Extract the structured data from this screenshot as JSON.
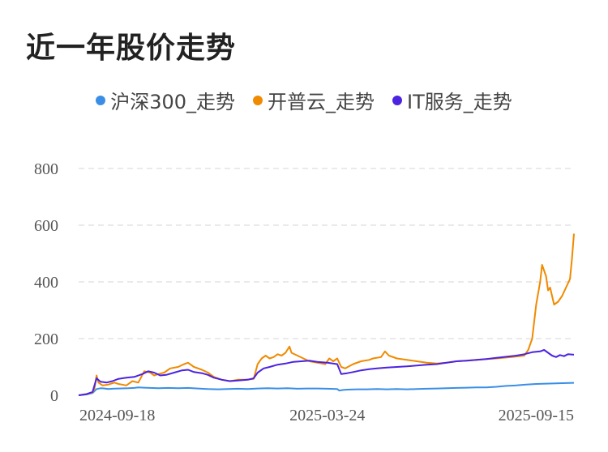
{
  "header": {
    "title": "近一年股价走势"
  },
  "legend": [
    {
      "label": "沪深300_走势",
      "color": "#3a8ee6"
    },
    {
      "label": "开普云_走势",
      "color": "#f08a00"
    },
    {
      "label": "IT服务_走势",
      "color": "#4b23e0"
    }
  ],
  "chart_data": {
    "type": "line",
    "title": "近一年股价走势",
    "xlabel": "",
    "ylabel": "",
    "ylim": [
      0,
      800
    ],
    "yticks": [
      0,
      200,
      400,
      600,
      800
    ],
    "xticks": [
      "2024-09-18",
      "2025-03-24",
      "2025-09-15"
    ],
    "grid": "horizontal-dashed",
    "legend_position": "top",
    "x_count": 250,
    "series": [
      {
        "name": "沪深300_走势",
        "color": "#3a8ee6",
        "points": [
          [
            0,
            0
          ],
          [
            4,
            3
          ],
          [
            7,
            8
          ],
          [
            9,
            22
          ],
          [
            11,
            25
          ],
          [
            13,
            24
          ],
          [
            15,
            22
          ],
          [
            17,
            23
          ],
          [
            20,
            24
          ],
          [
            25,
            25
          ],
          [
            28,
            26
          ],
          [
            30,
            28
          ],
          [
            33,
            27
          ],
          [
            36,
            26
          ],
          [
            40,
            25
          ],
          [
            45,
            26
          ],
          [
            50,
            25
          ],
          [
            55,
            26
          ],
          [
            60,
            24
          ],
          [
            65,
            22
          ],
          [
            70,
            21
          ],
          [
            75,
            22
          ],
          [
            80,
            23
          ],
          [
            85,
            22
          ],
          [
            90,
            24
          ],
          [
            95,
            25
          ],
          [
            100,
            24
          ],
          [
            105,
            25
          ],
          [
            110,
            23
          ],
          [
            115,
            24
          ],
          [
            120,
            24
          ],
          [
            125,
            23
          ],
          [
            130,
            22
          ],
          [
            131,
            17
          ],
          [
            133,
            19
          ],
          [
            135,
            20
          ],
          [
            140,
            21
          ],
          [
            145,
            21
          ],
          [
            150,
            22
          ],
          [
            155,
            21
          ],
          [
            160,
            22
          ],
          [
            165,
            21
          ],
          [
            170,
            22
          ],
          [
            175,
            23
          ],
          [
            180,
            24
          ],
          [
            185,
            25
          ],
          [
            190,
            26
          ],
          [
            195,
            27
          ],
          [
            200,
            28
          ],
          [
            205,
            28
          ],
          [
            210,
            30
          ],
          [
            215,
            33
          ],
          [
            220,
            35
          ],
          [
            225,
            38
          ],
          [
            230,
            40
          ],
          [
            235,
            41
          ],
          [
            240,
            42
          ],
          [
            245,
            43
          ],
          [
            249,
            44
          ]
        ]
      },
      {
        "name": "开普云_走势",
        "color": "#f08a00",
        "points": [
          [
            0,
            0
          ],
          [
            4,
            5
          ],
          [
            7,
            10
          ],
          [
            8,
            25
          ],
          [
            9,
            70
          ],
          [
            10,
            45
          ],
          [
            12,
            35
          ],
          [
            15,
            38
          ],
          [
            18,
            45
          ],
          [
            20,
            40
          ],
          [
            24,
            35
          ],
          [
            27,
            50
          ],
          [
            30,
            45
          ],
          [
            33,
            85
          ],
          [
            36,
            80
          ],
          [
            38,
            70
          ],
          [
            40,
            75
          ],
          [
            43,
            80
          ],
          [
            46,
            95
          ],
          [
            50,
            100
          ],
          [
            53,
            110
          ],
          [
            55,
            115
          ],
          [
            58,
            100
          ],
          [
            62,
            90
          ],
          [
            65,
            80
          ],
          [
            68,
            65
          ],
          [
            72,
            55
          ],
          [
            76,
            50
          ],
          [
            80,
            55
          ],
          [
            84,
            55
          ],
          [
            88,
            58
          ],
          [
            90,
            110
          ],
          [
            92,
            130
          ],
          [
            94,
            140
          ],
          [
            96,
            130
          ],
          [
            98,
            135
          ],
          [
            100,
            145
          ],
          [
            102,
            140
          ],
          [
            104,
            150
          ],
          [
            106,
            172
          ],
          [
            107,
            150
          ],
          [
            110,
            140
          ],
          [
            113,
            130
          ],
          [
            116,
            120
          ],
          [
            120,
            115
          ],
          [
            124,
            110
          ],
          [
            126,
            130
          ],
          [
            128,
            120
          ],
          [
            130,
            130
          ],
          [
            132,
            100
          ],
          [
            134,
            95
          ],
          [
            138,
            110
          ],
          [
            142,
            120
          ],
          [
            146,
            125
          ],
          [
            148,
            130
          ],
          [
            152,
            135
          ],
          [
            154,
            155
          ],
          [
            156,
            140
          ],
          [
            160,
            130
          ],
          [
            165,
            125
          ],
          [
            170,
            120
          ],
          [
            175,
            115
          ],
          [
            180,
            112
          ],
          [
            185,
            115
          ],
          [
            190,
            120
          ],
          [
            195,
            122
          ],
          [
            200,
            125
          ],
          [
            205,
            128
          ],
          [
            210,
            130
          ],
          [
            215,
            133
          ],
          [
            220,
            137
          ],
          [
            224,
            140
          ],
          [
            226,
            160
          ],
          [
            228,
            200
          ],
          [
            230,
            320
          ],
          [
            232,
            400
          ],
          [
            233,
            460
          ],
          [
            235,
            420
          ],
          [
            236,
            370
          ],
          [
            237,
            380
          ],
          [
            239,
            320
          ],
          [
            241,
            330
          ],
          [
            243,
            350
          ],
          [
            245,
            380
          ],
          [
            247,
            410
          ],
          [
            248,
            480
          ],
          [
            249,
            570
          ]
        ]
      },
      {
        "name": "IT服务_走势",
        "color": "#4b23e0",
        "points": [
          [
            0,
            0
          ],
          [
            4,
            4
          ],
          [
            7,
            12
          ],
          [
            9,
            60
          ],
          [
            11,
            48
          ],
          [
            14,
            45
          ],
          [
            17,
            50
          ],
          [
            20,
            58
          ],
          [
            24,
            62
          ],
          [
            28,
            65
          ],
          [
            32,
            75
          ],
          [
            35,
            85
          ],
          [
            38,
            80
          ],
          [
            41,
            70
          ],
          [
            44,
            72
          ],
          [
            48,
            80
          ],
          [
            52,
            88
          ],
          [
            55,
            90
          ],
          [
            58,
            82
          ],
          [
            62,
            78
          ],
          [
            65,
            72
          ],
          [
            68,
            62
          ],
          [
            72,
            55
          ],
          [
            76,
            50
          ],
          [
            80,
            52
          ],
          [
            85,
            55
          ],
          [
            88,
            60
          ],
          [
            90,
            80
          ],
          [
            93,
            95
          ],
          [
            96,
            100
          ],
          [
            100,
            108
          ],
          [
            104,
            112
          ],
          [
            108,
            118
          ],
          [
            112,
            120
          ],
          [
            116,
            122
          ],
          [
            120,
            118
          ],
          [
            125,
            115
          ],
          [
            130,
            110
          ],
          [
            132,
            75
          ],
          [
            135,
            78
          ],
          [
            138,
            82
          ],
          [
            142,
            88
          ],
          [
            146,
            92
          ],
          [
            150,
            95
          ],
          [
            155,
            98
          ],
          [
            160,
            100
          ],
          [
            165,
            102
          ],
          [
            170,
            105
          ],
          [
            175,
            108
          ],
          [
            180,
            110
          ],
          [
            185,
            115
          ],
          [
            190,
            120
          ],
          [
            195,
            122
          ],
          [
            200,
            125
          ],
          [
            205,
            128
          ],
          [
            210,
            132
          ],
          [
            215,
            136
          ],
          [
            220,
            140
          ],
          [
            224,
            145
          ],
          [
            228,
            152
          ],
          [
            232,
            155
          ],
          [
            234,
            160
          ],
          [
            236,
            150
          ],
          [
            238,
            140
          ],
          [
            240,
            135
          ],
          [
            242,
            142
          ],
          [
            244,
            138
          ],
          [
            246,
            145
          ],
          [
            249,
            143
          ]
        ]
      }
    ]
  }
}
